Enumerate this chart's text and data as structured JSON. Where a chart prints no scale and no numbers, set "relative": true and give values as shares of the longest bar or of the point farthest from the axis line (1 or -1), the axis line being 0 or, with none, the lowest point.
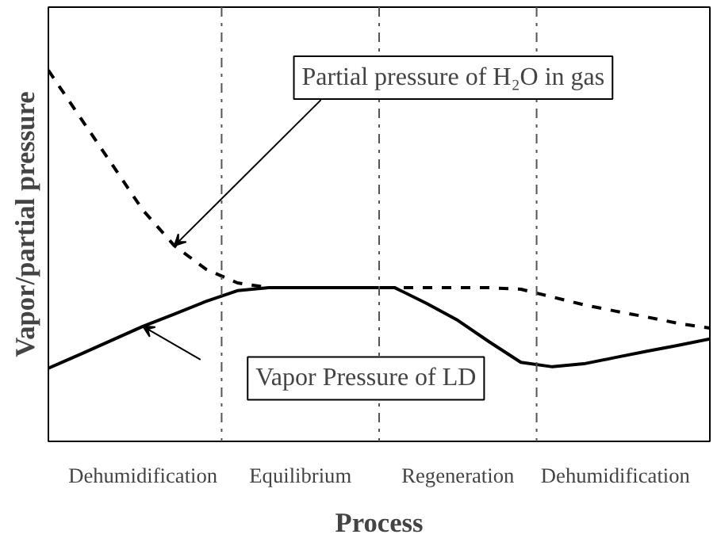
{
  "chart_data": {
    "type": "line",
    "relative": true,
    "xlabel": "Process",
    "ylabel": "Vapor/partial pressure",
    "categories": [
      null,
      null,
      null,
      "Dehumidification",
      null,
      null,
      null,
      null,
      "Equilibrium",
      null,
      null,
      null,
      null,
      "Regeneration",
      null,
      null,
      null,
      null,
      "Dehumidification",
      null,
      null,
      null
    ],
    "series": [
      {
        "color": "#000000",
        "line_style": "dashed",
        "values": [
          1,
          0.874,
          0.749,
          0.623,
          0.527,
          0.464,
          0.427,
          0.414,
          0.414,
          0.414,
          0.414,
          0.414,
          0.414,
          0.414,
          0.414,
          0.41,
          0.389,
          0.368,
          0.351,
          0.335,
          0.318,
          0.305
        ]
      },
      {
        "color": "#000000",
        "line_style": "solid",
        "values": [
          0.197,
          0.234,
          0.272,
          0.31,
          0.343,
          0.377,
          0.406,
          0.414,
          0.414,
          0.414,
          0.414,
          0.414,
          0.372,
          0.326,
          0.268,
          0.213,
          0.201,
          0.209,
          0.226,
          0.243,
          0.259,
          0.276
        ]
      }
    ],
    "annotations": [
      "Partial pressure of H₂O in gas",
      "Vapor Pressure of LD"
    ]
  }
}
